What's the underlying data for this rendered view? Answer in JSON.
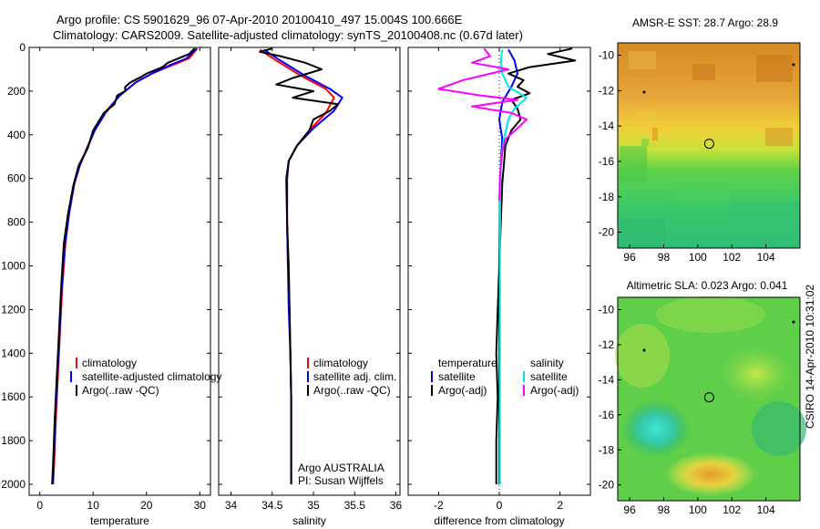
{
  "header": {
    "line1": "Argo profile: CS 5901629_96 07-Apr-2010 20100410_497 15.004S 100.666E",
    "line2": "Climatology: CARS2009. Satellite-adjusted climatology: synTS_20100408.nc (0.67d later)"
  },
  "colors": {
    "climatology": "#ff0000",
    "satellite": "#0000ff",
    "argo": "#000000",
    "sal_satellite": "#00e5e5",
    "sal_argo": "#ff00ff"
  },
  "chart_data": [
    {
      "type": "line",
      "id": "temperature",
      "xlabel": "temperature",
      "ylabel": "",
      "xlim": [
        -2,
        32
      ],
      "ylim": [
        2050,
        0
      ],
      "xticks": [
        0,
        10,
        20,
        30
      ],
      "yticks": [
        0,
        200,
        400,
        600,
        800,
        1000,
        1200,
        1400,
        1600,
        1800,
        2000
      ],
      "legend": [
        "climatology",
        "satellite-adjusted climatology",
        "Argo(..raw -QC)"
      ],
      "series": [
        {
          "name": "climatology",
          "color": "#ff0000",
          "points": [
            [
              29.5,
              5
            ],
            [
              29,
              20
            ],
            [
              28,
              50
            ],
            [
              25,
              80
            ],
            [
              21,
              120
            ],
            [
              18,
              160
            ],
            [
              15,
              220
            ],
            [
              12.5,
              290
            ],
            [
              10.5,
              370
            ],
            [
              9,
              450
            ],
            [
              7.5,
              540
            ],
            [
              6.5,
              620
            ],
            [
              5.5,
              760
            ],
            [
              4.8,
              900
            ],
            [
              4.2,
              1100
            ],
            [
              3.8,
              1300
            ],
            [
              3.4,
              1500
            ],
            [
              3.0,
              1700
            ],
            [
              2.7,
              1900
            ],
            [
              2.5,
              2000
            ]
          ]
        },
        {
          "name": "satellite-adjusted climatology",
          "color": "#0000ff",
          "points": [
            [
              29.3,
              5
            ],
            [
              28.8,
              20
            ],
            [
              27.5,
              50
            ],
            [
              24.5,
              80
            ],
            [
              21,
              120
            ],
            [
              18,
              160
            ],
            [
              15,
              220
            ],
            [
              12.3,
              300
            ],
            [
              10.3,
              380
            ],
            [
              8.9,
              460
            ],
            [
              7.5,
              540
            ],
            [
              6.4,
              630
            ],
            [
              5.5,
              760
            ],
            [
              4.7,
              900
            ],
            [
              4.1,
              1100
            ],
            [
              3.7,
              1300
            ],
            [
              3.3,
              1500
            ],
            [
              2.9,
              1700
            ],
            [
              2.6,
              1900
            ],
            [
              2.4,
              2000
            ]
          ]
        },
        {
          "name": "Argo(..raw -QC)",
          "color": "#000000",
          "points": [
            [
              29,
              5
            ],
            [
              28,
              30
            ],
            [
              24,
              70
            ],
            [
              23,
              90
            ],
            [
              20,
              120
            ],
            [
              19,
              135
            ],
            [
              17,
              160
            ],
            [
              16,
              180
            ],
            [
              16,
              200
            ],
            [
              14.5,
              220
            ],
            [
              14,
              260
            ],
            [
              12,
              300
            ],
            [
              10,
              380
            ],
            [
              9,
              460
            ],
            [
              7.3,
              540
            ],
            [
              6.3,
              630
            ],
            [
              5.3,
              760
            ],
            [
              4.5,
              900
            ],
            [
              4,
              1100
            ],
            [
              3.6,
              1300
            ],
            [
              3.2,
              1500
            ],
            [
              2.8,
              1700
            ],
            [
              2.5,
              1900
            ],
            [
              2.3,
              2000
            ]
          ]
        }
      ]
    },
    {
      "type": "line",
      "id": "salinity",
      "xlabel": "salinity",
      "ylabel": "",
      "xlim": [
        33.85,
        36.05
      ],
      "ylim": [
        2050,
        0
      ],
      "xticks": [
        34,
        34.5,
        35,
        35.5,
        36
      ],
      "yticks": [
        0,
        200,
        400,
        600,
        800,
        1000,
        1200,
        1400,
        1600,
        1800,
        2000
      ],
      "legend": [
        "climatology",
        "satellite adj. clim.",
        "Argo(..raw -QC)"
      ],
      "annotation": [
        "Argo AUSTRALIA",
        "PI: Susan Wijffels"
      ],
      "series": [
        {
          "name": "climatology",
          "color": "#ff0000",
          "points": [
            [
              34.35,
              10
            ],
            [
              34.55,
              60
            ],
            [
              34.85,
              130
            ],
            [
              35.15,
              190
            ],
            [
              35.25,
              230
            ],
            [
              35.15,
              300
            ],
            [
              34.95,
              380
            ],
            [
              34.8,
              450
            ],
            [
              34.7,
              520
            ],
            [
              34.68,
              600
            ],
            [
              34.68,
              800
            ],
            [
              34.69,
              1000
            ],
            [
              34.71,
              1200
            ],
            [
              34.72,
              1400
            ],
            [
              34.73,
              1600
            ],
            [
              34.73,
              1800
            ],
            [
              34.73,
              2000
            ]
          ]
        },
        {
          "name": "satellite adj. clim.",
          "color": "#0000ff",
          "points": [
            [
              34.4,
              10
            ],
            [
              34.6,
              60
            ],
            [
              34.9,
              130
            ],
            [
              35.2,
              190
            ],
            [
              35.35,
              230
            ],
            [
              35.25,
              290
            ],
            [
              35.0,
              370
            ],
            [
              34.8,
              450
            ],
            [
              34.7,
              520
            ],
            [
              34.68,
              600
            ],
            [
              34.68,
              800
            ],
            [
              34.69,
              1000
            ],
            [
              34.7,
              1200
            ],
            [
              34.72,
              1400
            ],
            [
              34.73,
              1600
            ],
            [
              34.73,
              1800
            ],
            [
              34.73,
              2000
            ]
          ]
        },
        {
          "name": "Argo(..raw -QC)",
          "color": "#000000",
          "points": [
            [
              34.5,
              5
            ],
            [
              34.35,
              20
            ],
            [
              34.6,
              40
            ],
            [
              34.9,
              70
            ],
            [
              35.1,
              100
            ],
            [
              34.75,
              140
            ],
            [
              34.55,
              170
            ],
            [
              35.0,
              200
            ],
            [
              34.75,
              230
            ],
            [
              35.3,
              260
            ],
            [
              35.2,
              290
            ],
            [
              35.0,
              330
            ],
            [
              34.95,
              380
            ],
            [
              34.8,
              450
            ],
            [
              34.7,
              520
            ],
            [
              34.67,
              600
            ],
            [
              34.68,
              800
            ],
            [
              34.7,
              1000
            ],
            [
              34.71,
              1200
            ],
            [
              34.72,
              1400
            ],
            [
              34.73,
              1600
            ],
            [
              34.73,
              1800
            ],
            [
              34.73,
              2000
            ]
          ]
        }
      ]
    },
    {
      "type": "line",
      "id": "difference",
      "xlabel": "difference from climatology",
      "ylabel": "",
      "xlim": [
        -3,
        3
      ],
      "ylim": [
        2050,
        0
      ],
      "xticks": [
        -2,
        0,
        2
      ],
      "yticks": [
        0,
        200,
        400,
        600,
        800,
        1000,
        1200,
        1400,
        1600,
        1800,
        2000
      ],
      "legend_headers": [
        "temperature",
        "salinity"
      ],
      "legend": [
        "satellite",
        "Argo(-adj)",
        "satellite",
        "Argo(-adj)"
      ],
      "series": [
        {
          "name": "temperature satellite",
          "color": "#0000ff",
          "points": [
            [
              0.3,
              10
            ],
            [
              0.5,
              60
            ],
            [
              0.6,
              120
            ],
            [
              0.4,
              180
            ],
            [
              0.1,
              250
            ],
            [
              0.0,
              330
            ],
            [
              0.1,
              420
            ],
            [
              0.05,
              520
            ],
            [
              0.02,
              700
            ],
            [
              0.0,
              1000
            ],
            [
              0.0,
              1500
            ],
            [
              0.0,
              2000
            ]
          ]
        },
        {
          "name": "temperature Argo(-adj)",
          "color": "#000000",
          "points": [
            [
              2.4,
              5
            ],
            [
              1.6,
              30
            ],
            [
              2.5,
              60
            ],
            [
              1.0,
              90
            ],
            [
              0.3,
              120
            ],
            [
              0.8,
              150
            ],
            [
              0.6,
              180
            ],
            [
              1.0,
              210
            ],
            [
              0.4,
              240
            ],
            [
              0.6,
              280
            ],
            [
              0.7,
              330
            ],
            [
              0.4,
              380
            ],
            [
              0.2,
              450
            ],
            [
              0.15,
              540
            ],
            [
              0.1,
              620
            ],
            [
              0.05,
              800
            ],
            [
              0.0,
              1000
            ],
            [
              -0.05,
              1200
            ],
            [
              -0.1,
              1400
            ],
            [
              -0.05,
              1600
            ],
            [
              -0.1,
              1800
            ],
            [
              -0.1,
              2000
            ]
          ]
        },
        {
          "name": "salinity satellite",
          "color": "#00e5e5",
          "points": [
            [
              0.1,
              10
            ],
            [
              0.05,
              60
            ],
            [
              0.1,
              120
            ],
            [
              0.3,
              180
            ],
            [
              0.9,
              230
            ],
            [
              0.5,
              280
            ],
            [
              0.3,
              330
            ],
            [
              0.15,
              420
            ],
            [
              0.05,
              520
            ],
            [
              0.03,
              700
            ],
            [
              0.02,
              1000
            ],
            [
              0.02,
              1500
            ],
            [
              0.02,
              2000
            ]
          ]
        },
        {
          "name": "salinity Argo(-adj)",
          "color": "#ff00ff",
          "points": [
            [
              -0.5,
              5
            ],
            [
              -0.3,
              40
            ],
            [
              -0.9,
              70
            ],
            [
              0.3,
              100
            ],
            [
              -1.2,
              150
            ],
            [
              -2.0,
              190
            ],
            [
              -0.6,
              220
            ],
            [
              0.6,
              240
            ],
            [
              -0.9,
              270
            ],
            [
              0.4,
              300
            ],
            [
              0.9,
              330
            ],
            [
              0.6,
              370
            ],
            [
              0.2,
              420
            ],
            [
              0.1,
              480
            ],
            [
              0.05,
              540
            ],
            [
              0.02,
              600
            ],
            [
              0.0,
              700
            ]
          ]
        }
      ]
    },
    {
      "type": "heatmap",
      "id": "sst_map",
      "title": "AMSR-E SST: 28.7  Argo: 28.9",
      "xlim": [
        95.3,
        106
      ],
      "ylim": [
        -20.9,
        -9.3
      ],
      "xticks": [
        96,
        98,
        100,
        102,
        104
      ],
      "yticks": [
        -10,
        -12,
        -14,
        -16,
        -18,
        -20
      ],
      "marker": [
        100.67,
        -15.0
      ]
    },
    {
      "type": "heatmap",
      "id": "sla_map",
      "title": "Altimetric SLA: 0.023  Argo: 0.041",
      "xlim": [
        95.3,
        106
      ],
      "ylim": [
        -20.9,
        -9.3
      ],
      "xticks": [
        96,
        98,
        100,
        102,
        104
      ],
      "yticks": [
        -10,
        -12,
        -14,
        -16,
        -18,
        -20
      ],
      "marker": [
        100.67,
        -15.0
      ]
    }
  ],
  "footer": {
    "credit": "CSIRO 14-Apr-2010 10:31:02"
  }
}
